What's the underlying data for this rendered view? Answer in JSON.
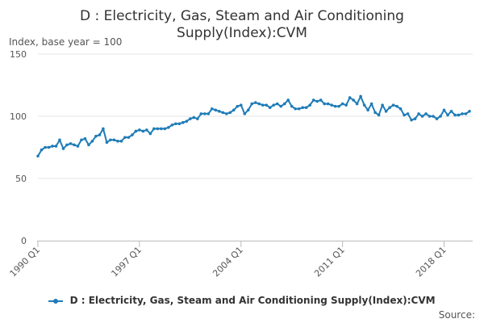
{
  "chart_data": {
    "type": "line",
    "title_lines": [
      "D : Electricity, Gas, Steam and Air Conditioning",
      "Supply(Index):CVM"
    ],
    "ylabel": "Index, base year = 100",
    "xlabel": "",
    "ylim": [
      0,
      150
    ],
    "yticks": [
      0,
      50,
      100,
      150
    ],
    "xticks": [
      {
        "label": "1990 Q1",
        "index": 0
      },
      {
        "label": "1997 Q1",
        "index": 28
      },
      {
        "label": "2004 Q1",
        "index": 56
      },
      {
        "label": "2011 Q1",
        "index": 84
      },
      {
        "label": "2018 Q1",
        "index": 112
      }
    ],
    "x_start": "1990 Q1",
    "x_end": "2018 Q1",
    "grid": true,
    "legend_position": "bottom",
    "source_label": "Source:",
    "series": [
      {
        "name": "D : Electricity, Gas, Steam and Air Conditioning Supply(Index):CVM",
        "color": "#1f7cb8",
        "values": [
          68,
          73,
          75,
          75,
          76,
          76,
          81,
          74,
          77,
          78,
          77,
          76,
          81,
          82,
          77,
          80,
          84,
          85,
          90,
          79,
          81,
          81,
          80,
          80,
          83,
          83,
          85,
          88,
          89,
          88,
          89,
          86,
          90,
          90,
          90,
          90,
          91,
          93,
          94,
          94,
          95,
          96,
          98,
          99,
          98,
          102,
          102,
          102,
          106,
          105,
          104,
          103,
          102,
          103,
          105,
          108,
          109,
          102,
          105,
          110,
          111,
          110,
          109,
          109,
          107,
          109,
          110,
          108,
          110,
          113,
          108,
          106,
          106,
          107,
          107,
          109,
          113,
          112,
          113,
          110,
          110,
          109,
          108,
          108,
          110,
          109,
          115,
          113,
          110,
          116,
          109,
          105,
          110,
          103,
          101,
          109,
          104,
          107,
          109,
          108,
          106,
          101,
          102,
          97,
          98,
          102,
          100,
          102,
          100,
          100,
          98,
          100,
          105,
          101,
          104,
          101,
          101,
          102,
          102,
          104
        ]
      }
    ]
  }
}
